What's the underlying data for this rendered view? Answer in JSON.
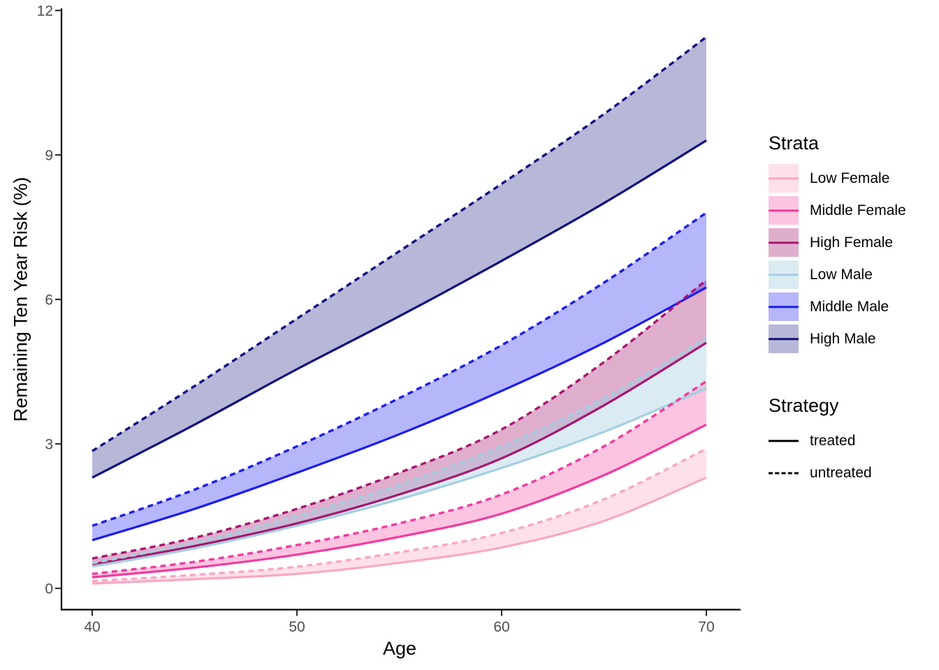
{
  "chart_data": {
    "type": "line",
    "title": "",
    "xlabel": "Age",
    "ylabel": "Remaining Ten Year Risk (%)",
    "x": [
      40,
      45,
      50,
      55,
      60,
      65,
      70
    ],
    "xticks": [
      40,
      50,
      60,
      70
    ],
    "yticks": [
      0,
      3,
      6,
      9,
      12
    ],
    "xlim": [
      38.5,
      71.6
    ],
    "ylim": [
      0,
      12
    ],
    "grid": "off",
    "legend_position": "right",
    "axis_text_color": "#4d4d4d",
    "axis_line_color": "#000000",
    "legend": {
      "strata_title": "Strata",
      "strategy_title": "Strategy",
      "strategy_items": [
        {
          "label": "treated",
          "style": "solid"
        },
        {
          "label": "untreated",
          "style": "dashed"
        }
      ]
    },
    "strata": [
      {
        "label": "Low Female",
        "line_color": "#F9A7C3",
        "fill_rgba": "rgba(249,167,195,0.35)",
        "treated": [
          0.1,
          0.19,
          0.3,
          0.53,
          0.85,
          1.4,
          2.3
        ],
        "untreated": [
          0.15,
          0.28,
          0.45,
          0.75,
          1.15,
          1.85,
          2.9
        ]
      },
      {
        "label": "Middle Female",
        "line_color": "#F23A9D",
        "fill_rgba": "rgba(242,58,157,0.30)",
        "treated": [
          0.23,
          0.43,
          0.7,
          1.07,
          1.55,
          2.35,
          3.4
        ],
        "untreated": [
          0.3,
          0.55,
          0.9,
          1.35,
          1.95,
          2.95,
          4.3
        ]
      },
      {
        "label": "High Female",
        "line_color": "#A5176F",
        "fill_rgba": "rgba(165,23,111,0.35)",
        "treated": [
          0.5,
          0.88,
          1.35,
          1.95,
          2.7,
          3.8,
          5.1
        ],
        "untreated": [
          0.62,
          1.05,
          1.65,
          2.4,
          3.3,
          4.7,
          6.4
        ]
      },
      {
        "label": "Low Male",
        "line_color": "#A5CEE0",
        "fill_rgba": "rgba(165,206,224,0.40)",
        "treated": [
          0.45,
          0.83,
          1.3,
          1.85,
          2.5,
          3.25,
          4.15
        ],
        "untreated": [
          0.52,
          0.95,
          1.5,
          2.15,
          2.95,
          3.95,
          5.2
        ]
      },
      {
        "label": "Middle Male",
        "line_color": "#1C1CF0",
        "fill_rgba": "rgba(28,28,240,0.32)",
        "treated": [
          1.0,
          1.65,
          2.4,
          3.2,
          4.1,
          5.1,
          6.25
        ],
        "untreated": [
          1.3,
          2.05,
          2.95,
          3.95,
          5.05,
          6.35,
          7.8
        ]
      },
      {
        "label": "High Male",
        "line_color": "#10107E",
        "fill_rgba": "rgba(16,16,126,0.30)",
        "treated": [
          2.3,
          3.4,
          4.55,
          5.65,
          6.8,
          8.0,
          9.3
        ],
        "untreated": [
          2.85,
          4.2,
          5.6,
          7.0,
          8.4,
          9.85,
          11.45
        ]
      }
    ]
  }
}
